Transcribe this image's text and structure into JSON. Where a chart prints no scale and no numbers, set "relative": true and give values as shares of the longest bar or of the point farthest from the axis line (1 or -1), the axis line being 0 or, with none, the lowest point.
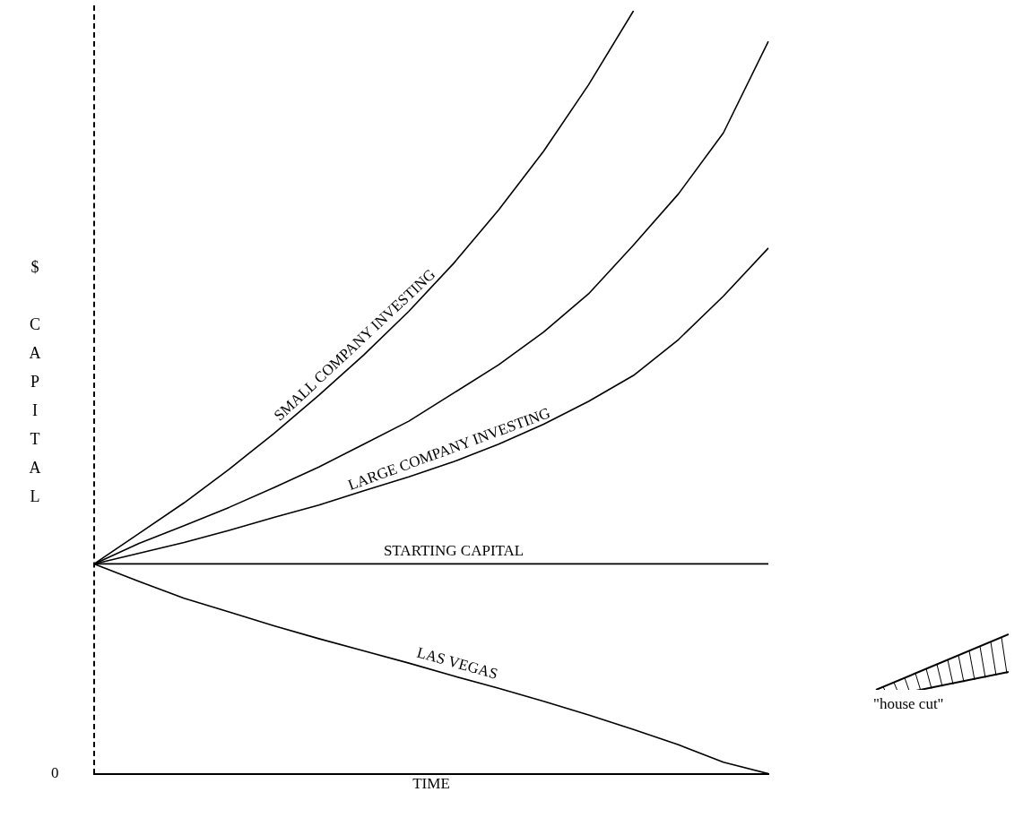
{
  "chart_data": {
    "type": "line",
    "relative": true,
    "xlabel": "TIME",
    "ylabel": "$ CAPITAL",
    "categories": [
      null,
      null,
      null,
      null,
      null,
      null,
      null,
      null,
      null,
      null,
      null,
      null,
      null,
      null,
      null,
      null
    ],
    "series": [
      {
        "name": "SMALL COMPANY INVESTING",
        "color": "#000000",
        "values": [
          0.275,
          0.315,
          0.355,
          0.399,
          0.446,
          0.496,
          0.549,
          0.606,
          0.669,
          0.739,
          0.816,
          0.903,
          1.0,
          null,
          null,
          null
        ]
      },
      {
        "name": "LARGE COMPANY INVESTING",
        "color": "#000000",
        "values": [
          0.275,
          0.289,
          0.303,
          0.319,
          0.336,
          0.352,
          0.371,
          0.389,
          0.409,
          0.432,
          0.458,
          0.488,
          0.522,
          0.569,
          0.626,
          0.689
        ]
      },
      {
        "color": "#000000",
        "values": [
          0.275,
          0.302,
          0.325,
          0.349,
          0.375,
          0.402,
          0.432,
          0.462,
          0.499,
          0.536,
          0.579,
          0.629,
          0.693,
          0.76,
          0.84,
          0.96
        ]
      },
      {
        "name": "STARTING CAPITAL",
        "color": "#000000",
        "values": [
          0.275,
          0.275,
          0.275,
          0.275,
          0.275,
          0.275,
          0.275,
          0.275,
          0.275,
          0.275,
          0.275,
          0.275,
          0.275,
          0.275,
          0.275,
          0.275
        ]
      },
      {
        "name": "LAS VEGAS",
        "color": "#000000",
        "values": [
          0.275,
          0.252,
          0.23,
          0.212,
          0.194,
          0.177,
          0.161,
          0.145,
          0.128,
          0.112,
          0.095,
          0.077,
          0.058,
          0.038,
          0.015,
          0
        ]
      }
    ],
    "annotations": [
      "0",
      "\"house cut\""
    ],
    "grid": false,
    "legend": false,
    "marker": "none",
    "line_style": "solid"
  }
}
